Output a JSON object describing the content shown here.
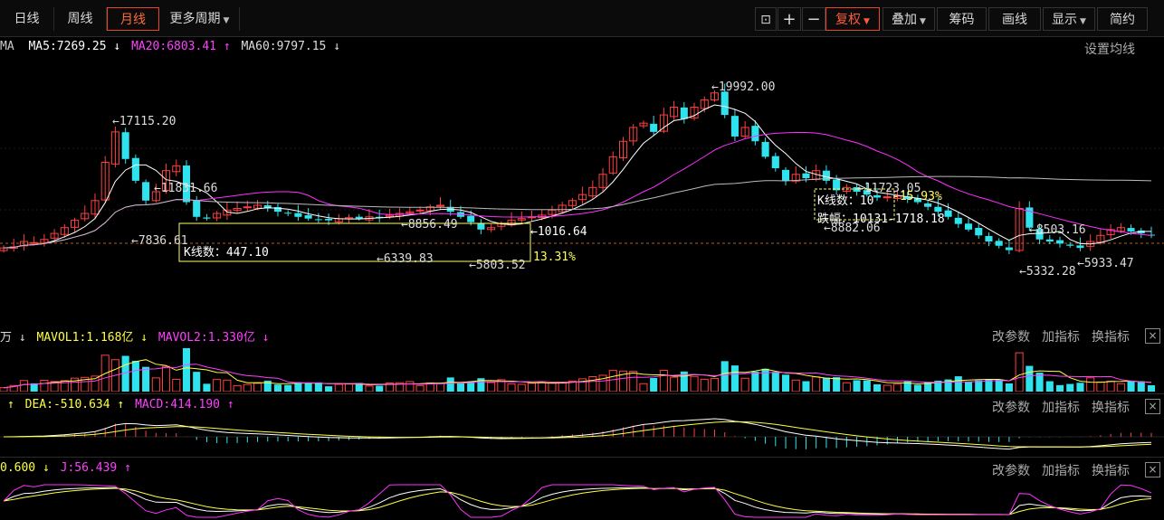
{
  "toolbar": {
    "tabs": [
      "日线",
      "周线",
      "月线",
      "更多周期"
    ],
    "active_tab": "月线",
    "buttons": {
      "fuquan": "复权",
      "overlay": "叠加",
      "chips": "筹码",
      "draw": "画线",
      "display": "显示",
      "simple": "简约"
    }
  },
  "ma_legend": {
    "prefix": "MA",
    "ma5": "MA5:7269.25",
    "ma5_arrow": "↓",
    "ma20": "MA20:6803.41",
    "ma20_arrow": "↑",
    "ma60": "MA60:9797.15",
    "ma60_arrow": "↓",
    "settings": "设置均线"
  },
  "main_annotations": {
    "high1": "←17115.20",
    "high2": "←11831.66",
    "low1": "←7836.61",
    "high3": "←8856.49",
    "low2": "←6339.83",
    "low3": "←5803.52",
    "box1_count": "K线数：447.10",
    "box1_pct": "13.31%",
    "box1_right": "←1016.64",
    "peak": "←19992.00",
    "high4": "←11723.05",
    "box2_count": "K线数：10",
    "box2_pct": "-15.93%",
    "box2_detail": "跌幅：10131-1718.18",
    "low4": "←8882.06",
    "high5": "←8503.16",
    "low5": "←5332.28",
    "low6": "←5933.47"
  },
  "vol_header": {
    "unit": "万",
    "unit_arrow": "↓",
    "mavol1": "MAVOL1:1.168亿",
    "mavol1_arrow": "↓",
    "mavol2": "MAVOL2:1.330亿",
    "mavol2_arrow": "↓"
  },
  "macd_header": {
    "lead_arrow": "↑",
    "dea": "DEA:-510.634",
    "dea_arrow": "↑",
    "macd": "MACD:414.190",
    "macd_arrow": "↑"
  },
  "kdj_header": {
    "d": "0.600",
    "d_arrow": "↓",
    "j": "J:56.439",
    "j_arrow": "↑"
  },
  "panel_links": {
    "params": "改参数",
    "add": "加指标",
    "switch": "换指标",
    "close": "×"
  },
  "colors": {
    "up": "#ff4040",
    "down": "#2fe3ee",
    "ma5": "#ffffff",
    "ma20": "#ff30ff",
    "ma60": "#bbbbbb",
    "yellow": "#ffff40",
    "accent": "#e8452a"
  },
  "chart_data": {
    "type": "candlestick",
    "y_scale": "log",
    "shown_values": {
      "MA5": 7269.25,
      "MA20": 6803.41,
      "MA60": 9797.15,
      "MAVOL1": "1.168亿",
      "MAVOL2": "1.330亿",
      "DEA": -510.634,
      "MACD": 414.19,
      "J": 56.439
    },
    "marked_prices": [
      17115.2,
      11831.66,
      7836.61,
      8856.49,
      6339.83,
      5803.52,
      1016.64,
      19992.0,
      11723.05,
      8882.06,
      8503.16,
      5332.28,
      5933.47
    ],
    "closes": [
      6000,
      6050,
      6300,
      6250,
      6400,
      6700,
      7000,
      7400,
      7800,
      8600,
      11500,
      14500,
      11800,
      10000,
      8600,
      9200,
      10800,
      11200,
      8500,
      7600,
      7500,
      7800,
      8000,
      8100,
      8200,
      8300,
      8100,
      7900,
      7800,
      7600,
      7500,
      7450,
      7400,
      7500,
      7550,
      7500,
      7600,
      7550,
      7700,
      7800,
      7900,
      8000,
      8200,
      8300,
      7900,
      7600,
      7300,
      6900,
      7000,
      7200,
      7400,
      7500,
      7600,
      7700,
      8000,
      8300,
      8600,
      9000,
      9500,
      10500,
      12000,
      13500,
      15000,
      15500,
      14500,
      16500,
      17500,
      16000,
      17500,
      18500,
      19500,
      16500,
      14000,
      15000,
      13500,
      12000,
      11000,
      10000,
      10500,
      10200,
      10800,
      10000,
      9300,
      9500,
      9200,
      9000,
      8800,
      8850,
      8900,
      8700,
      8500,
      8200,
      7900,
      7600,
      7200,
      6900,
      6600,
      6300,
      6100,
      5900,
      8100,
      7000,
      6400,
      6300,
      6200,
      6100,
      6000,
      6300,
      6600,
      6900,
      7000,
      6800,
      6700,
      6600
    ]
  }
}
